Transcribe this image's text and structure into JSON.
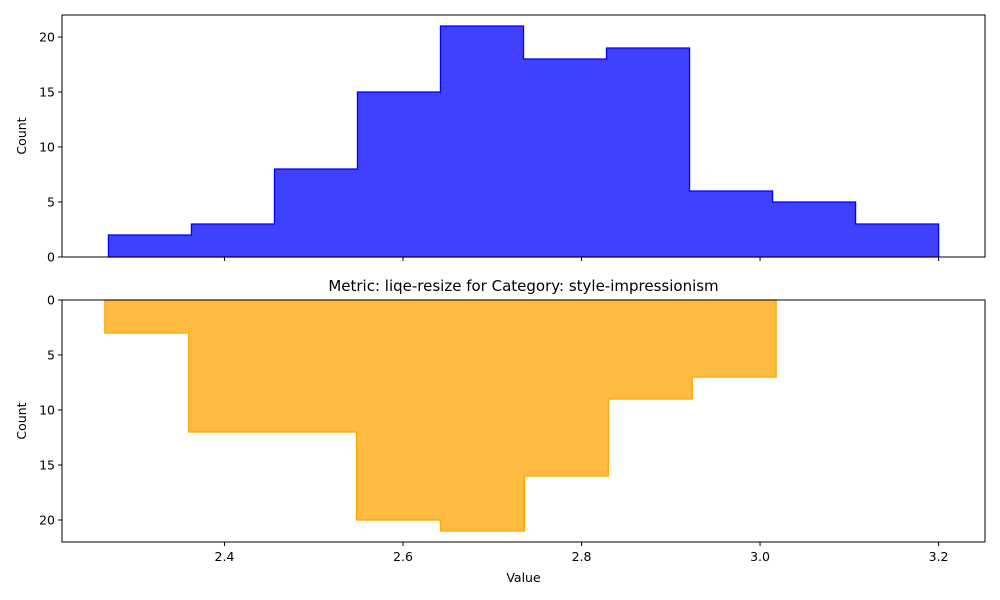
{
  "chart_data": [
    {
      "type": "histogram",
      "orientation": "normal",
      "color": "#0000ff",
      "edge_color": "#0000ff",
      "fill_opacity": 0.75,
      "title": "",
      "xlabel": "",
      "ylabel": "Count",
      "xlim": [
        2.218,
        3.252
      ],
      "ylim": [
        0,
        22
      ],
      "bins": [
        2.27,
        2.363,
        2.456,
        2.549,
        2.642,
        2.735,
        2.828,
        2.921,
        3.014,
        3.107,
        3.2
      ],
      "counts": [
        2,
        3,
        8,
        15,
        21,
        18,
        19,
        6,
        5,
        3
      ],
      "yticks": [
        0,
        5,
        10,
        15,
        20
      ],
      "xticks": [
        2.4,
        2.6,
        2.8,
        3.0,
        3.2
      ],
      "show_xtick_labels": false
    },
    {
      "type": "histogram",
      "orientation": "inverted",
      "color": "#ffa500",
      "edge_color": "#ffa500",
      "fill_opacity": 0.75,
      "title": "Metric: liqe-resize for Category: style-impressionism",
      "xlabel": "Value",
      "ylabel": "Count",
      "xlim": [
        2.218,
        3.252
      ],
      "ylim": [
        0,
        22
      ],
      "bins": [
        2.266,
        2.36,
        2.454,
        2.548,
        2.642,
        2.736,
        2.83,
        2.924,
        3.018
      ],
      "counts": [
        3,
        12,
        12,
        20,
        21,
        16,
        9,
        7
      ],
      "yticks": [
        0,
        5,
        10,
        15,
        20
      ],
      "xticks": [
        2.4,
        2.6,
        2.8,
        3.0,
        3.2
      ],
      "tick_labels": [
        "2.4",
        "2.6",
        "2.8",
        "3.0",
        "3.2"
      ],
      "show_xtick_labels": true
    }
  ]
}
